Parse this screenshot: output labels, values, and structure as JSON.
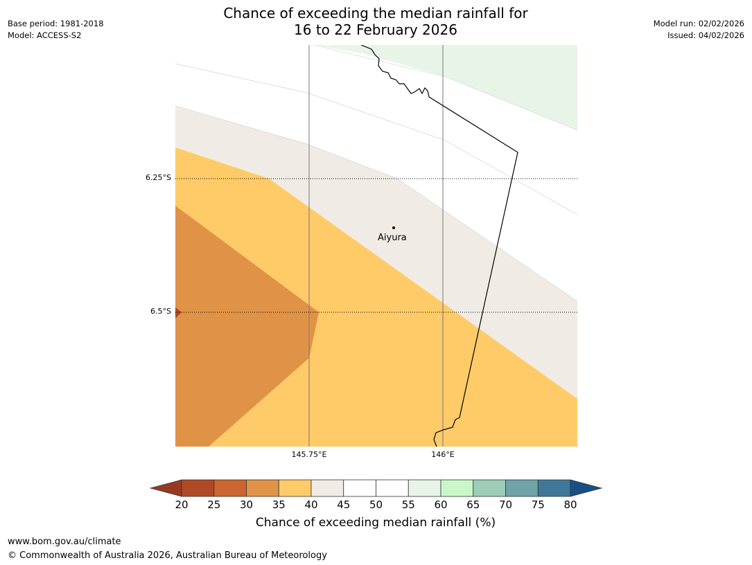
{
  "header": {
    "title_line1": "Chance of exceeding the median rainfall for",
    "title_line2": "16 to 22 February 2026",
    "base_period": "Base period: 1981-2018",
    "model": "Model: ACCESS-S2",
    "model_run": "Model run: 02/02/2026",
    "issued": "Issued: 04/02/2026"
  },
  "map": {
    "lat_labels": [
      "6.25°S",
      "6.5°S"
    ],
    "lon_labels": [
      "145.75°E",
      "146°E"
    ],
    "place": {
      "name": "Aiyura"
    },
    "region_colors": {
      "c25_30": "#c9612e",
      "c30_35": "#e09347",
      "c35_40": "#fecb68",
      "c40_45": "#f0ebe5",
      "c45_55": "#ffffff",
      "c55_60": "#e8f4e8",
      "c20_25": "#a94a29"
    }
  },
  "colorbar": {
    "ticks": [
      "20",
      "25",
      "30",
      "35",
      "40",
      "45",
      "50",
      "55",
      "60",
      "65",
      "70",
      "75",
      "80"
    ],
    "colors": [
      "#b04a26",
      "#cc6530",
      "#e09347",
      "#fecb68",
      "#f0ebe5",
      "#ffffff",
      "#ffffff",
      "#e8f4e8",
      "#c9f7c9",
      "#9dcdb7",
      "#6fa3a7",
      "#3f7799"
    ],
    "under_color": "#983a22",
    "over_color": "#1a4f86",
    "label": "Chance of exceeding median rainfall (%)"
  },
  "footer": {
    "url": "www.bom.gov.au/climate",
    "copyright": "© Commonwealth of Australia 2026, Australian Bureau of Meteorology"
  }
}
